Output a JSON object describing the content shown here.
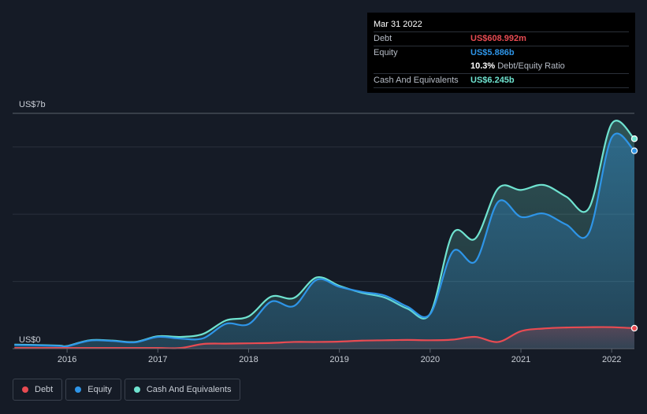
{
  "tooltip": {
    "date": "Mar 31 2022",
    "rows": [
      {
        "label": "Debt",
        "value": "US$608.992m",
        "color": "#e84b52"
      },
      {
        "label": "Equity",
        "value": "US$5.886b",
        "color": "#2e95e8"
      },
      {
        "label": "",
        "value": "10.3%",
        "suffix": "Debt/Equity Ratio",
        "color": "#ffffff"
      },
      {
        "label": "Cash And Equivalents",
        "value": "US$6.245b",
        "color": "#6fe3d0"
      }
    ]
  },
  "legend": [
    {
      "label": "Debt",
      "color": "#e84b52"
    },
    {
      "label": "Equity",
      "color": "#2e95e8"
    },
    {
      "label": "Cash And Equivalents",
      "color": "#6fe3d0"
    }
  ],
  "chart_data": {
    "type": "area",
    "y_unit_labels": {
      "top": "US$7b",
      "bottom": "US$0"
    },
    "ylim": [
      0,
      7
    ],
    "xlim": [
      2015.4,
      2022.25
    ],
    "x_ticks": [
      2016,
      2017,
      2018,
      2019,
      2020,
      2021,
      2022
    ],
    "x_tick_labels": [
      "2016",
      "2017",
      "2018",
      "2019",
      "2020",
      "2021",
      "2022"
    ],
    "grid": true,
    "legend_position": "bottom-left",
    "series": [
      {
        "name": "Cash And Equivalents",
        "color": "#6fe3d0",
        "x": [
          2015.42,
          2015.67,
          2015.92,
          2016.0,
          2016.25,
          2016.5,
          2016.75,
          2017.0,
          2017.25,
          2017.5,
          2017.75,
          2018.0,
          2018.25,
          2018.5,
          2018.75,
          2019.0,
          2019.25,
          2019.5,
          2019.75,
          2020.0,
          2020.25,
          2020.5,
          2020.75,
          2021.0,
          2021.25,
          2021.5,
          2021.75,
          2022.0,
          2022.25
        ],
        "values": [
          0.12,
          0.11,
          0.09,
          0.08,
          0.25,
          0.24,
          0.2,
          0.37,
          0.35,
          0.44,
          0.84,
          0.96,
          1.55,
          1.51,
          2.12,
          1.87,
          1.66,
          1.52,
          1.19,
          1.04,
          3.43,
          3.28,
          4.77,
          4.72,
          4.87,
          4.52,
          4.18,
          6.69,
          6.245
        ]
      },
      {
        "name": "Equity",
        "color": "#2e95e8",
        "x": [
          2015.42,
          2015.67,
          2015.92,
          2016.0,
          2016.25,
          2016.5,
          2016.75,
          2017.0,
          2017.25,
          2017.5,
          2017.75,
          2018.0,
          2018.25,
          2018.5,
          2018.75,
          2019.0,
          2019.25,
          2019.5,
          2019.75,
          2020.0,
          2020.25,
          2020.5,
          2020.75,
          2021.0,
          2021.25,
          2021.5,
          2021.75,
          2022.0,
          2022.25
        ],
        "values": [
          0.11,
          0.1,
          0.08,
          0.07,
          0.24,
          0.23,
          0.19,
          0.35,
          0.3,
          0.31,
          0.74,
          0.73,
          1.4,
          1.27,
          2.05,
          1.84,
          1.69,
          1.58,
          1.25,
          1.03,
          2.89,
          2.6,
          4.37,
          3.92,
          4.02,
          3.69,
          3.45,
          6.28,
          5.886
        ]
      },
      {
        "name": "Debt",
        "color": "#e84b52",
        "x": [
          2015.42,
          2015.67,
          2015.92,
          2016.0,
          2016.25,
          2016.5,
          2016.75,
          2017.0,
          2017.25,
          2017.5,
          2017.75,
          2018.0,
          2018.25,
          2018.5,
          2018.75,
          2019.0,
          2019.25,
          2019.5,
          2019.75,
          2020.0,
          2020.25,
          2020.5,
          2020.75,
          2021.0,
          2021.25,
          2021.5,
          2021.75,
          2022.0,
          2022.25
        ],
        "values": [
          0.02,
          0.02,
          0.02,
          0.02,
          0.02,
          0.02,
          0.02,
          0.02,
          0.02,
          0.14,
          0.15,
          0.16,
          0.17,
          0.2,
          0.2,
          0.21,
          0.24,
          0.25,
          0.26,
          0.25,
          0.27,
          0.35,
          0.2,
          0.52,
          0.6,
          0.63,
          0.64,
          0.64,
          0.609
        ]
      }
    ]
  }
}
